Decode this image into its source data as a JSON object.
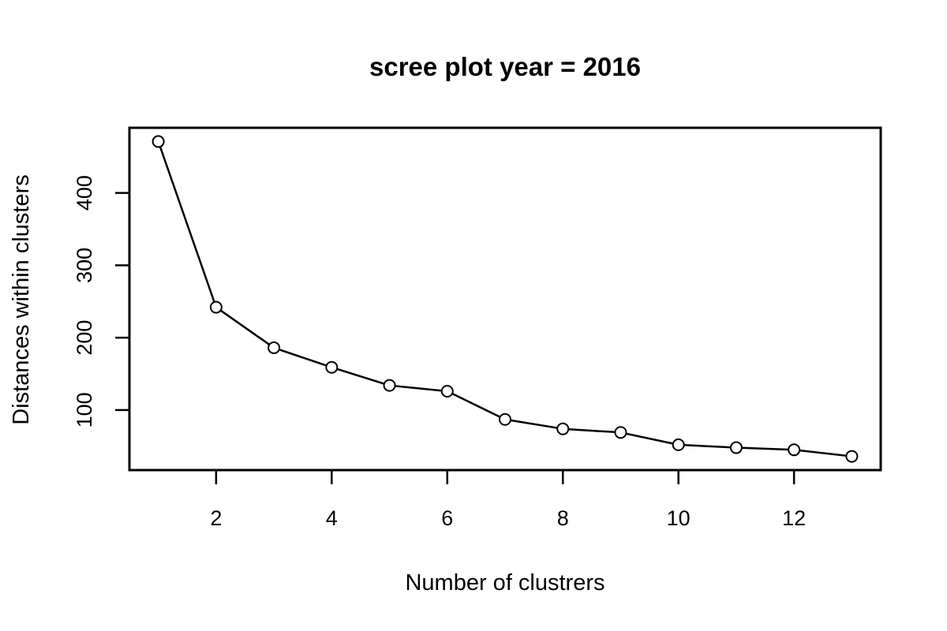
{
  "chart_data": {
    "type": "line",
    "title": "scree plot year =  2016",
    "xlabel": "Number of clustrers",
    "ylabel": "Distances within clusters",
    "x": [
      1,
      2,
      3,
      4,
      5,
      6,
      7,
      8,
      9,
      10,
      11,
      12,
      13
    ],
    "y": [
      471,
      242,
      186,
      159,
      134,
      126,
      87,
      74,
      69,
      52,
      48,
      45,
      36
    ],
    "xlim": [
      0.5,
      13.5
    ],
    "ylim": [
      17,
      490
    ],
    "xticks": [
      2,
      4,
      6,
      8,
      10,
      12
    ],
    "xtick_labels": [
      "2",
      "4",
      "6",
      "8",
      "10",
      "12"
    ],
    "yticks": [
      100,
      200,
      300,
      400
    ],
    "ytick_labels": [
      "100",
      "200",
      "300",
      "400"
    ],
    "marker": "open-circle",
    "grid": false,
    "legend": false,
    "line_color": "#000000"
  }
}
